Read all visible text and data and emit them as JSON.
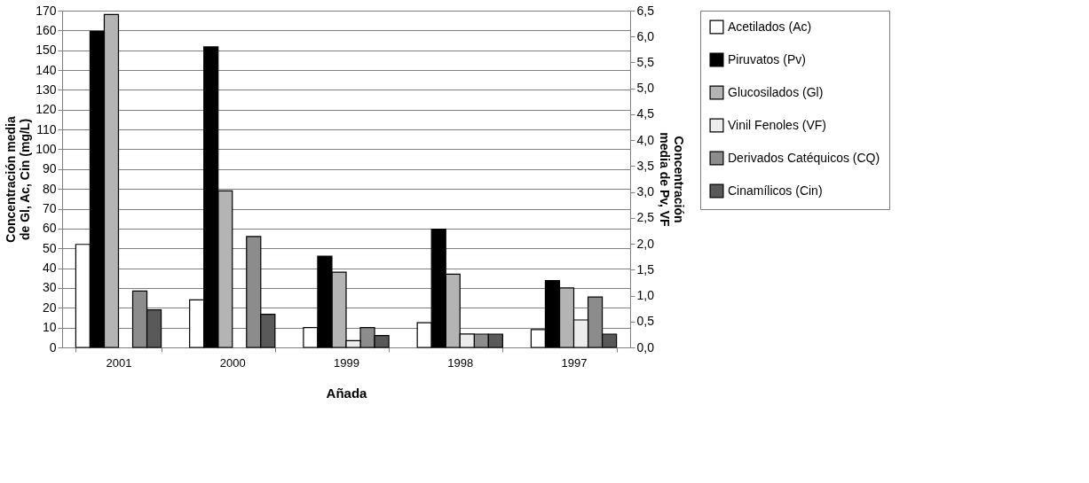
{
  "chart_data": {
    "type": "bar",
    "xlabel": "Añada",
    "ylabel": "Concentración media de Gl, Ac, Cin (mg/L)",
    "y2label": "Concentración media de Pv, VF",
    "categories": [
      "2001",
      "2000",
      "1999",
      "1998",
      "1997"
    ],
    "series": [
      {
        "name": "Acetilados (Ac)",
        "color": "#ffffff",
        "values": [
          52,
          24,
          10,
          12.5,
          9
        ]
      },
      {
        "name": "Piruvatos (Pv)",
        "color": "#000000",
        "axis": "y2",
        "values": [
          6.1,
          5.8,
          1.76,
          2.28,
          1.29
        ]
      },
      {
        "name": "Glucosilados (Gl)",
        "color": "#b4b4b4",
        "values": [
          168,
          79,
          38,
          37,
          30
        ]
      },
      {
        "name": "Vinil Fenoles (VF)",
        "color": "#ececec",
        "axis": "y2",
        "values": [
          null,
          null,
          0.13,
          0.26,
          0.53
        ]
      },
      {
        "name": "Derivados Catéquicos (CQ)",
        "color": "#8c8c8c",
        "values": [
          28.5,
          56,
          10,
          6.7,
          25.4
        ]
      },
      {
        "name": "Cinamílicos (Cin)",
        "color": "#595959",
        "values": [
          19,
          16.7,
          6,
          6.7,
          6.7
        ]
      }
    ],
    "ylim": [
      0,
      170
    ],
    "yticks": [
      0,
      10,
      20,
      30,
      40,
      50,
      60,
      70,
      80,
      90,
      100,
      110,
      120,
      130,
      140,
      150,
      160,
      170
    ],
    "y2lim": [
      0,
      6.5
    ],
    "y2ticks": [
      {
        "value": 0,
        "label": "0,0"
      },
      {
        "value": 0.5,
        "label": "0,5"
      },
      {
        "value": 1,
        "label": "1,0"
      },
      {
        "value": 1.5,
        "label": "1,5"
      },
      {
        "value": 2,
        "label": "2,0"
      },
      {
        "value": 2.5,
        "label": "2,5"
      },
      {
        "value": 3,
        "label": "3,0"
      },
      {
        "value": 3.5,
        "label": "3,5"
      },
      {
        "value": 4,
        "label": "4,0"
      },
      {
        "value": 4.5,
        "label": "4,5"
      },
      {
        "value": 5,
        "label": "5,0"
      },
      {
        "value": 5.5,
        "label": "5,5"
      },
      {
        "value": 6,
        "label": "6,0"
      },
      {
        "value": 6.5,
        "label": "6,5"
      }
    ],
    "grid": "y",
    "legend": "right"
  }
}
